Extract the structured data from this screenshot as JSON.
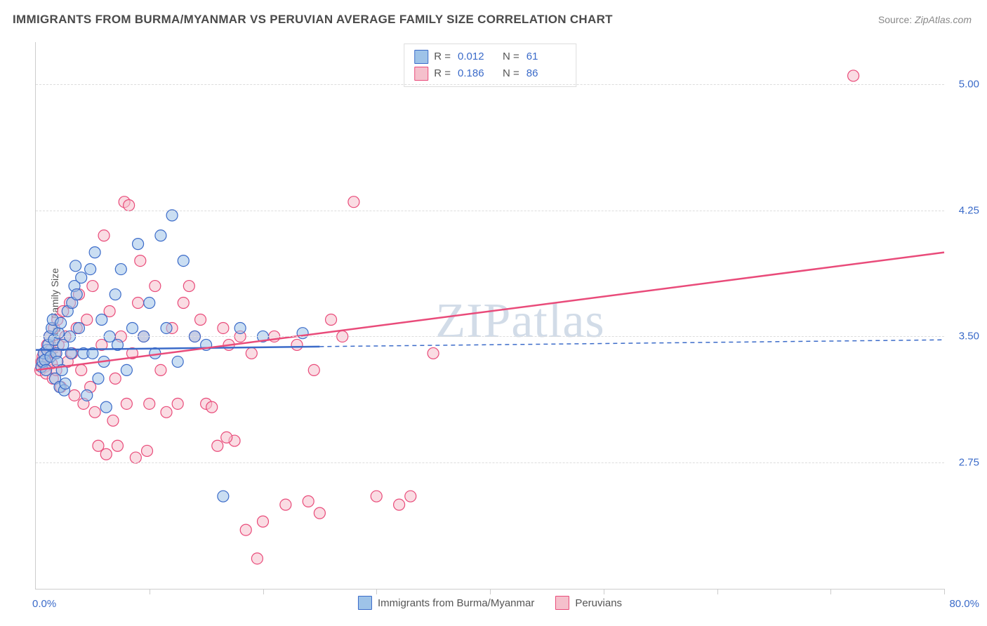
{
  "title": "IMMIGRANTS FROM BURMA/MYANMAR VS PERUVIAN AVERAGE FAMILY SIZE CORRELATION CHART",
  "source_label": "Source:",
  "source_value": "ZipAtlas.com",
  "watermark": "ZIPatlas",
  "chart": {
    "type": "scatter",
    "ylabel": "Average Family Size",
    "xlim": [
      0,
      80
    ],
    "ylim": [
      2.0,
      5.25
    ],
    "xtick_positions": [
      10,
      20,
      30,
      40,
      50,
      60,
      70,
      80
    ],
    "ytick_values": [
      2.75,
      3.5,
      4.25,
      5.0
    ],
    "ytick_labels": [
      "2.75",
      "3.50",
      "4.25",
      "5.00"
    ],
    "xlabel_min": "0.0%",
    "xlabel_max": "80.0%",
    "background_color": "#ffffff",
    "grid_color": "#dddddd",
    "axis_color": "#cccccc",
    "marker_radius": 8,
    "marker_opacity": 0.55,
    "series": [
      {
        "name": "Immigrants from Burma/Myanmar",
        "color_fill": "#9ec3e8",
        "color_stroke": "#3b6bc9",
        "R": "0.012",
        "N": "61",
        "regression": {
          "x0": 0,
          "y0": 3.42,
          "x1": 25,
          "y1": 3.44,
          "extrapolate_x1": 80,
          "extrapolate_y1": 3.48,
          "stroke_width": 2.5
        },
        "points": [
          [
            0.5,
            3.32
          ],
          [
            0.6,
            3.35
          ],
          [
            0.7,
            3.4
          ],
          [
            0.8,
            3.36
          ],
          [
            0.9,
            3.3
          ],
          [
            1.0,
            3.42
          ],
          [
            1.1,
            3.45
          ],
          [
            1.2,
            3.5
          ],
          [
            1.3,
            3.38
          ],
          [
            1.4,
            3.55
          ],
          [
            1.5,
            3.6
          ],
          [
            1.6,
            3.48
          ],
          [
            1.7,
            3.25
          ],
          [
            1.8,
            3.4
          ],
          [
            1.9,
            3.35
          ],
          [
            2.0,
            3.52
          ],
          [
            2.1,
            3.2
          ],
          [
            2.2,
            3.58
          ],
          [
            2.3,
            3.3
          ],
          [
            2.4,
            3.45
          ],
          [
            2.5,
            3.18
          ],
          [
            2.6,
            3.22
          ],
          [
            2.8,
            3.65
          ],
          [
            3.0,
            3.5
          ],
          [
            3.1,
            3.4
          ],
          [
            3.2,
            3.7
          ],
          [
            3.4,
            3.8
          ],
          [
            3.5,
            3.92
          ],
          [
            3.6,
            3.75
          ],
          [
            3.8,
            3.55
          ],
          [
            4.0,
            3.85
          ],
          [
            4.2,
            3.4
          ],
          [
            4.5,
            3.15
          ],
          [
            4.8,
            3.9
          ],
          [
            5.0,
            3.4
          ],
          [
            5.2,
            4.0
          ],
          [
            5.5,
            3.25
          ],
          [
            5.8,
            3.6
          ],
          [
            6.0,
            3.35
          ],
          [
            6.2,
            3.08
          ],
          [
            6.5,
            3.5
          ],
          [
            7.0,
            3.75
          ],
          [
            7.2,
            3.45
          ],
          [
            7.5,
            3.9
          ],
          [
            8.0,
            3.3
          ],
          [
            8.5,
            3.55
          ],
          [
            9.0,
            4.05
          ],
          [
            9.5,
            3.5
          ],
          [
            10.0,
            3.7
          ],
          [
            10.5,
            3.4
          ],
          [
            11.0,
            4.1
          ],
          [
            11.5,
            3.55
          ],
          [
            12.0,
            4.22
          ],
          [
            12.5,
            3.35
          ],
          [
            13.0,
            3.95
          ],
          [
            14.0,
            3.5
          ],
          [
            15.0,
            3.45
          ],
          [
            16.5,
            2.55
          ],
          [
            18.0,
            3.55
          ],
          [
            20.0,
            3.5
          ],
          [
            23.5,
            3.52
          ]
        ]
      },
      {
        "name": "Peruvians",
        "color_fill": "#f5c0cc",
        "color_stroke": "#e94b7a",
        "R": "0.186",
        "N": "86",
        "regression": {
          "x0": 0,
          "y0": 3.3,
          "x1": 80,
          "y1": 4.0,
          "stroke_width": 2.5
        },
        "points": [
          [
            0.4,
            3.3
          ],
          [
            0.5,
            3.35
          ],
          [
            0.6,
            3.38
          ],
          [
            0.7,
            3.4
          ],
          [
            0.8,
            3.32
          ],
          [
            0.9,
            3.28
          ],
          [
            1.0,
            3.45
          ],
          [
            1.1,
            3.36
          ],
          [
            1.2,
            3.5
          ],
          [
            1.3,
            3.42
          ],
          [
            1.4,
            3.34
          ],
          [
            1.5,
            3.25
          ],
          [
            1.6,
            3.55
          ],
          [
            1.7,
            3.4
          ],
          [
            1.8,
            3.3
          ],
          [
            1.9,
            3.6
          ],
          [
            2.0,
            3.45
          ],
          [
            2.2,
            3.2
          ],
          [
            2.4,
            3.65
          ],
          [
            2.6,
            3.5
          ],
          [
            2.8,
            3.35
          ],
          [
            3.0,
            3.7
          ],
          [
            3.2,
            3.4
          ],
          [
            3.4,
            3.15
          ],
          [
            3.6,
            3.55
          ],
          [
            3.8,
            3.75
          ],
          [
            4.0,
            3.3
          ],
          [
            4.2,
            3.1
          ],
          [
            4.5,
            3.6
          ],
          [
            4.8,
            3.2
          ],
          [
            5.0,
            3.8
          ],
          [
            5.2,
            3.05
          ],
          [
            5.5,
            2.85
          ],
          [
            5.8,
            3.45
          ],
          [
            6.0,
            4.1
          ],
          [
            6.2,
            2.8
          ],
          [
            6.5,
            3.65
          ],
          [
            6.8,
            3.0
          ],
          [
            7.0,
            3.25
          ],
          [
            7.2,
            2.85
          ],
          [
            7.5,
            3.5
          ],
          [
            7.8,
            4.3
          ],
          [
            8.0,
            3.1
          ],
          [
            8.2,
            4.28
          ],
          [
            8.5,
            3.4
          ],
          [
            8.8,
            2.78
          ],
          [
            9.0,
            3.7
          ],
          [
            9.2,
            3.95
          ],
          [
            9.5,
            3.5
          ],
          [
            9.8,
            2.82
          ],
          [
            10.0,
            3.1
          ],
          [
            10.5,
            3.8
          ],
          [
            11.0,
            3.3
          ],
          [
            11.5,
            3.05
          ],
          [
            12.0,
            3.55
          ],
          [
            12.5,
            3.1
          ],
          [
            13.0,
            3.7
          ],
          [
            13.5,
            3.8
          ],
          [
            14.0,
            3.5
          ],
          [
            14.5,
            3.6
          ],
          [
            15.0,
            3.1
          ],
          [
            15.5,
            3.08
          ],
          [
            16.0,
            2.85
          ],
          [
            16.5,
            3.55
          ],
          [
            17.0,
            3.45
          ],
          [
            17.5,
            2.88
          ],
          [
            18.0,
            3.5
          ],
          [
            18.5,
            2.35
          ],
          [
            19.0,
            3.4
          ],
          [
            20.0,
            2.4
          ],
          [
            21.0,
            3.5
          ],
          [
            22.0,
            2.5
          ],
          [
            23.0,
            3.45
          ],
          [
            24.0,
            2.52
          ],
          [
            24.5,
            3.3
          ],
          [
            25.0,
            2.45
          ],
          [
            26.0,
            3.6
          ],
          [
            27.0,
            3.5
          ],
          [
            28.0,
            4.3
          ],
          [
            30.0,
            2.55
          ],
          [
            32.0,
            2.5
          ],
          [
            33.0,
            2.55
          ],
          [
            35.0,
            3.4
          ],
          [
            72.0,
            5.05
          ],
          [
            19.5,
            2.18
          ],
          [
            16.8,
            2.9
          ]
        ]
      }
    ]
  },
  "legend_top": {
    "r_label": "R =",
    "n_label": "N ="
  }
}
